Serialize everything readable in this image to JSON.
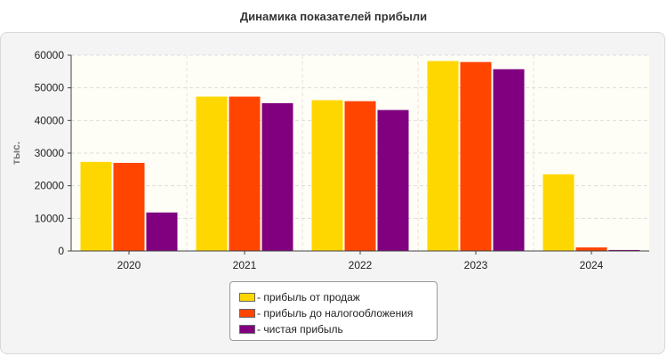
{
  "chart_data": {
    "type": "bar",
    "title": "Динамика показателей прибыли",
    "ylabel": "тыс.",
    "xlabel": "",
    "categories": [
      "2020",
      "2021",
      "2022",
      "2023",
      "2024"
    ],
    "ylim": [
      0,
      60000
    ],
    "yticks": [
      0,
      10000,
      20000,
      30000,
      40000,
      50000,
      60000
    ],
    "grid": true,
    "legend_position": "bottom",
    "series": [
      {
        "name": "- прибыль от продаж",
        "color": "#FFD700",
        "values": [
          27300,
          47300,
          46200,
          58200,
          23500
        ]
      },
      {
        "name": "- прибыль до налогообложения",
        "color": "#FF4500",
        "values": [
          27000,
          47300,
          45900,
          57900,
          1100
        ]
      },
      {
        "name": "- чистая прибыль",
        "color": "#800080",
        "values": [
          11800,
          45300,
          43200,
          55700,
          300
        ]
      }
    ]
  }
}
